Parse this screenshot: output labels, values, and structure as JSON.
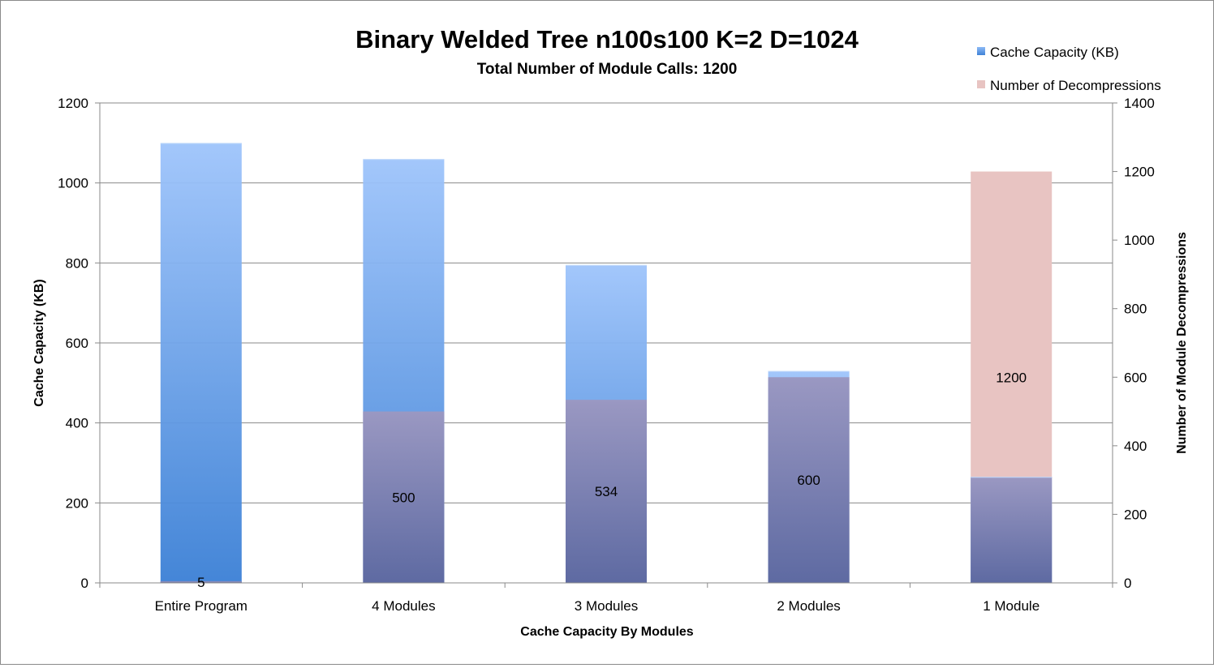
{
  "chart_data": {
    "type": "bar",
    "title": "Binary Welded Tree n100s100 K=2 D=1024",
    "subtitle": "Total Number of Module Calls: 1200",
    "xlabel": "Cache Capacity By Modules",
    "ylabel": "Cache Capacity (KB)",
    "y2label": "Number of Module Decompressions",
    "categories": [
      "Entire Program",
      "4 Modules",
      "3 Modules",
      "2 Modules",
      "1 Module"
    ],
    "series": [
      {
        "name": "Cache Capacity (KB)",
        "axis": "left",
        "values": [
          1100,
          1060,
          795,
          530,
          265
        ],
        "color": "#5b9bea"
      },
      {
        "name": "Number of Decompressions",
        "axis": "right",
        "values": [
          5,
          500,
          534,
          600,
          1200
        ],
        "color": "#e8b9b6"
      }
    ],
    "data_labels": [
      "5",
      "500",
      "534",
      "600",
      "1200"
    ],
    "ylim": [
      0,
      1200
    ],
    "y2lim": [
      0,
      1400
    ],
    "yticks": [
      "0",
      "200",
      "400",
      "600",
      "800",
      "1000",
      "1200"
    ],
    "y2ticks": [
      "0",
      "200",
      "400",
      "600",
      "800",
      "1000",
      "1200",
      "1400"
    ],
    "grid": true,
    "legend_position": "top-right"
  }
}
